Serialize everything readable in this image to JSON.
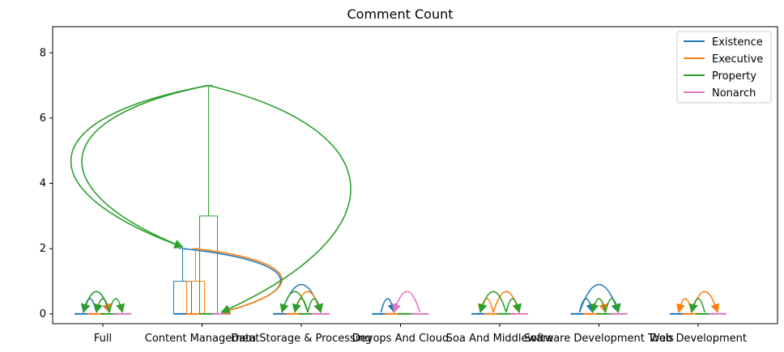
{
  "chart_data": {
    "type": "boxplot",
    "title": "Comment Count",
    "xlabel": "",
    "ylabel": "",
    "ylim": [
      -0.3,
      8.8
    ],
    "yticks": [
      0,
      2,
      4,
      6,
      8
    ],
    "categories": [
      "Full",
      "Content Management",
      "Data Storage & Processing",
      "Devops And Cloud",
      "Soa And Middleware",
      "Software Development Tools",
      "Web Development"
    ],
    "series": [
      {
        "name": "Existence",
        "color": "#1f77b4"
      },
      {
        "name": "Executive",
        "color": "#ff7f0e"
      },
      {
        "name": "Property",
        "color": "#2ca02c"
      },
      {
        "name": "Nonarch",
        "color": "#e377c2"
      }
    ],
    "boxes": [
      {
        "category": 0,
        "series": 0,
        "q1": 0,
        "median": 0,
        "q3": 0,
        "whisker_low": 0,
        "whisker_high": 0
      },
      {
        "category": 0,
        "series": 1,
        "q1": 0,
        "median": 0,
        "q3": 0,
        "whisker_low": 0,
        "whisker_high": 0
      },
      {
        "category": 0,
        "series": 2,
        "q1": 0,
        "median": 0,
        "q3": 0,
        "whisker_low": 0,
        "whisker_high": 0
      },
      {
        "category": 0,
        "series": 3,
        "q1": 0,
        "median": 0,
        "q3": 0,
        "whisker_low": 0,
        "whisker_high": 0
      },
      {
        "category": 1,
        "series": 0,
        "q1": 0,
        "median": 0,
        "q3": 1,
        "whisker_low": 0,
        "whisker_high": 2
      },
      {
        "category": 1,
        "series": 1,
        "q1": 0,
        "median": 0,
        "q3": 1,
        "whisker_low": 0,
        "whisker_high": 2
      },
      {
        "category": 1,
        "series": 2,
        "q1": 0,
        "median": 0,
        "q3": 3,
        "whisker_low": 0,
        "whisker_high": 7
      },
      {
        "category": 1,
        "series": 3,
        "q1": 0,
        "median": 0,
        "q3": 0,
        "whisker_low": 0,
        "whisker_high": 0
      },
      {
        "category": 2,
        "series": 0,
        "q1": 0,
        "median": 0,
        "q3": 0,
        "whisker_low": 0,
        "whisker_high": 0
      },
      {
        "category": 2,
        "series": 1,
        "q1": 0,
        "median": 0,
        "q3": 0,
        "whisker_low": 0,
        "whisker_high": 0
      },
      {
        "category": 2,
        "series": 2,
        "q1": 0,
        "median": 0,
        "q3": 0,
        "whisker_low": 0,
        "whisker_high": 0
      },
      {
        "category": 2,
        "series": 3,
        "q1": 0,
        "median": 0,
        "q3": 0,
        "whisker_low": 0,
        "whisker_high": 0
      },
      {
        "category": 3,
        "series": 0,
        "q1": 0,
        "median": 0,
        "q3": 0,
        "whisker_low": 0,
        "whisker_high": 0
      },
      {
        "category": 3,
        "series": 1,
        "q1": 0,
        "median": 0,
        "q3": 0,
        "whisker_low": 0,
        "whisker_high": 0
      },
      {
        "category": 3,
        "series": 2,
        "q1": 0,
        "median": 0,
        "q3": 0,
        "whisker_low": 0,
        "whisker_high": 0
      },
      {
        "category": 3,
        "series": 3,
        "q1": 0,
        "median": 0,
        "q3": 0,
        "whisker_low": 0,
        "whisker_high": 0
      },
      {
        "category": 4,
        "series": 0,
        "q1": 0,
        "median": 0,
        "q3": 0,
        "whisker_low": 0,
        "whisker_high": 0
      },
      {
        "category": 4,
        "series": 1,
        "q1": 0,
        "median": 0,
        "q3": 0,
        "whisker_low": 0,
        "whisker_high": 0
      },
      {
        "category": 4,
        "series": 2,
        "q1": 0,
        "median": 0,
        "q3": 0,
        "whisker_low": 0,
        "whisker_high": 0
      },
      {
        "category": 4,
        "series": 3,
        "q1": 0,
        "median": 0,
        "q3": 0,
        "whisker_low": 0,
        "whisker_high": 0
      },
      {
        "category": 5,
        "series": 0,
        "q1": 0,
        "median": 0,
        "q3": 0,
        "whisker_low": 0,
        "whisker_high": 0
      },
      {
        "category": 5,
        "series": 1,
        "q1": 0,
        "median": 0,
        "q3": 0,
        "whisker_low": 0,
        "whisker_high": 0
      },
      {
        "category": 5,
        "series": 2,
        "q1": 0,
        "median": 0,
        "q3": 0,
        "whisker_low": 0,
        "whisker_high": 0
      },
      {
        "category": 5,
        "series": 3,
        "q1": 0,
        "median": 0,
        "q3": 0,
        "whisker_low": 0,
        "whisker_high": 0
      },
      {
        "category": 6,
        "series": 0,
        "q1": 0,
        "median": 0,
        "q3": 0,
        "whisker_low": 0,
        "whisker_high": 0
      },
      {
        "category": 6,
        "series": 1,
        "q1": 0,
        "median": 0,
        "q3": 0,
        "whisker_low": 0,
        "whisker_high": 0
      },
      {
        "category": 6,
        "series": 2,
        "q1": 0,
        "median": 0,
        "q3": 0,
        "whisker_low": 0,
        "whisker_high": 0
      },
      {
        "category": 6,
        "series": 3,
        "q1": 0,
        "median": 0,
        "q3": 0,
        "whisker_low": 0,
        "whisker_high": 0
      }
    ],
    "annotations": [
      {
        "category": 0,
        "from_series": 0,
        "to_series": 2,
        "from_y": 0,
        "to_y": 0,
        "color": "#1f77b4"
      },
      {
        "category": 0,
        "from_series": 1,
        "to_series": 0,
        "from_y": 0,
        "to_y": 0,
        "color": "#1f77b4"
      },
      {
        "category": 0,
        "from_series": 1,
        "to_series": 2,
        "from_y": 0,
        "to_y": 0,
        "color": "#ff7f0e"
      },
      {
        "category": 0,
        "from_series": 2,
        "to_series": 0,
        "from_y": 0,
        "to_y": 0,
        "color": "#2ca02c"
      },
      {
        "category": 0,
        "from_series": 2,
        "to_series": 1,
        "from_y": 0,
        "to_y": 0,
        "color": "#2ca02c"
      },
      {
        "category": 0,
        "from_series": 2,
        "to_series": 3,
        "from_y": 0,
        "to_y": 0,
        "color": "#2ca02c"
      },
      {
        "category": 1,
        "from_series": 0,
        "to_series": 3,
        "from_y": 2,
        "to_y": 0,
        "color": "#1f77b4"
      },
      {
        "category": 1,
        "from_series": 1,
        "to_series": 3,
        "from_y": 2,
        "to_y": 0,
        "color": "#ff7f0e"
      },
      {
        "category": 1,
        "from_series": 2,
        "to_series": 0,
        "from_y": 7,
        "to_y": 2,
        "color": "#2ca02c"
      },
      {
        "category": 1,
        "from_series": 2,
        "to_series": 0,
        "from_y": 7,
        "to_y": 2,
        "color": "#2ca02c"
      },
      {
        "category": 1,
        "from_series": 2,
        "to_series": 3,
        "from_y": 7,
        "to_y": 0,
        "color": "#2ca02c"
      },
      {
        "category": 2,
        "from_series": 0,
        "to_series": 3,
        "from_y": 0,
        "to_y": 0,
        "color": "#1f77b4"
      },
      {
        "category": 2,
        "from_series": 1,
        "to_series": 3,
        "from_y": 0,
        "to_y": 0,
        "color": "#ff7f0e"
      },
      {
        "category": 2,
        "from_series": 2,
        "to_series": 0,
        "from_y": 0,
        "to_y": 0,
        "color": "#2ca02c"
      },
      {
        "category": 2,
        "from_series": 2,
        "to_series": 1,
        "from_y": 0,
        "to_y": 0,
        "color": "#2ca02c"
      },
      {
        "category": 2,
        "from_series": 2,
        "to_series": 3,
        "from_y": 0,
        "to_y": 0,
        "color": "#2ca02c"
      },
      {
        "category": 3,
        "from_series": 0,
        "to_series": 1,
        "from_y": 0,
        "to_y": 0,
        "color": "#1f77b4"
      },
      {
        "category": 3,
        "from_series": 3,
        "to_series": 1,
        "from_y": 0,
        "to_y": 0,
        "color": "#e377c2"
      },
      {
        "category": 4,
        "from_series": 1,
        "to_series": 0,
        "from_y": 0,
        "to_y": 0,
        "color": "#ff7f0e"
      },
      {
        "category": 4,
        "from_series": 1,
        "to_series": 3,
        "from_y": 0,
        "to_y": 0,
        "color": "#ff7f0e"
      },
      {
        "category": 4,
        "from_series": 2,
        "to_series": 0,
        "from_y": 0,
        "to_y": 0,
        "color": "#2ca02c"
      },
      {
        "category": 4,
        "from_series": 2,
        "to_series": 3,
        "from_y": 0,
        "to_y": 0,
        "color": "#2ca02c"
      },
      {
        "category": 5,
        "from_series": 0,
        "to_series": 1,
        "from_y": 0,
        "to_y": 0,
        "color": "#1f77b4"
      },
      {
        "category": 5,
        "from_series": 0,
        "to_series": 3,
        "from_y": 0,
        "to_y": 0,
        "color": "#1f77b4"
      },
      {
        "category": 5,
        "from_series": 1,
        "to_series": 2,
        "from_y": 0,
        "to_y": 0,
        "color": "#ff7f0e"
      },
      {
        "category": 5,
        "from_series": 2,
        "to_series": 1,
        "from_y": 0,
        "to_y": 0,
        "color": "#2ca02c"
      },
      {
        "category": 5,
        "from_series": 2,
        "to_series": 3,
        "from_y": 0,
        "to_y": 0,
        "color": "#2ca02c"
      },
      {
        "category": 6,
        "from_series": 1,
        "to_series": 0,
        "from_y": 0,
        "to_y": 0,
        "color": "#ff7f0e"
      },
      {
        "category": 6,
        "from_series": 1,
        "to_series": 3,
        "from_y": 0,
        "to_y": 0,
        "color": "#ff7f0e"
      },
      {
        "category": 6,
        "from_series": 2,
        "to_series": 1,
        "from_y": 0,
        "to_y": 0,
        "color": "#2ca02c"
      }
    ],
    "legend_position": "top-right",
    "grid": false
  }
}
